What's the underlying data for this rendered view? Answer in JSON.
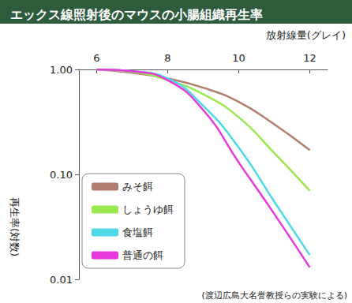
{
  "chart_data": {
    "type": "line",
    "title": "エックス線照射後のマウスの小腸組織再生率",
    "xlabel": "放射線量(グレイ)",
    "ylabel": "再生率(対数)",
    "annotations": [
      "(渡辺広島大名誉教授らの実験による)"
    ],
    "x": [
      6,
      7,
      8,
      9,
      10,
      11,
      12
    ],
    "series": [
      {
        "name": "みそ餌",
        "color": "#b27d70",
        "values": [
          1.0,
          0.93,
          0.82,
          0.67,
          0.49,
          0.3,
          0.17
        ]
      },
      {
        "name": "しょうゆ餌",
        "color": "#9be84f",
        "values": [
          1.0,
          0.95,
          0.79,
          0.58,
          0.35,
          0.16,
          0.07
        ]
      },
      {
        "name": "食塩餌",
        "color": "#4fd8e6",
        "values": [
          1.0,
          0.96,
          0.82,
          0.45,
          0.18,
          0.055,
          0.017
        ]
      },
      {
        "name": "普通の餌",
        "color": "#e838dc",
        "values": [
          1.0,
          0.96,
          0.79,
          0.41,
          0.13,
          0.042,
          0.013
        ]
      }
    ],
    "xlim": [
      5.5,
      12.5
    ],
    "xticks": [
      6,
      8,
      10,
      12
    ],
    "ylim": [
      0.01,
      1
    ],
    "yticks": [
      {
        "value": 0.01,
        "label": "0.01"
      },
      {
        "value": 0.1,
        "label": "0.10"
      },
      {
        "value": 1,
        "label": "1.00"
      }
    ],
    "log": "y",
    "grid": false,
    "legend": "lower left",
    "line_style": "solid",
    "marker": "none"
  }
}
